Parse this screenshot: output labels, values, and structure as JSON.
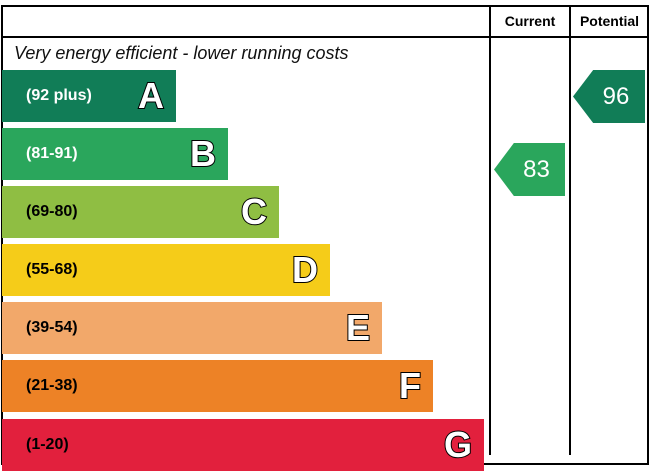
{
  "chart_data": {
    "type": "bar",
    "columns": {
      "current": "Current",
      "potential": "Potential"
    },
    "top_label": "Very energy efficient - lower running costs",
    "bands": [
      {
        "letter": "A",
        "range": "(92 plus)",
        "color": "#117d57",
        "text_color": "#ffffff"
      },
      {
        "letter": "B",
        "range": "(81-91)",
        "color": "#2aa65c",
        "text_color": "#ffffff"
      },
      {
        "letter": "C",
        "range": "(69-80)",
        "color": "#8fbe43",
        "text_color": "#000000"
      },
      {
        "letter": "D",
        "range": "(55-68)",
        "color": "#f5cc19",
        "text_color": "#000000"
      },
      {
        "letter": "E",
        "range": "(39-54)",
        "color": "#f2a86a",
        "text_color": "#000000"
      },
      {
        "letter": "F",
        "range": "(21-38)",
        "color": "#ed8226",
        "text_color": "#000000"
      },
      {
        "letter": "G",
        "range": "(1-20)",
        "color": "#e2203d",
        "text_color": "#000000"
      }
    ],
    "current": {
      "value": "83",
      "band": "B",
      "color": "#2aa65c"
    },
    "potential": {
      "value": "96",
      "band": "A",
      "color": "#117d57"
    }
  }
}
